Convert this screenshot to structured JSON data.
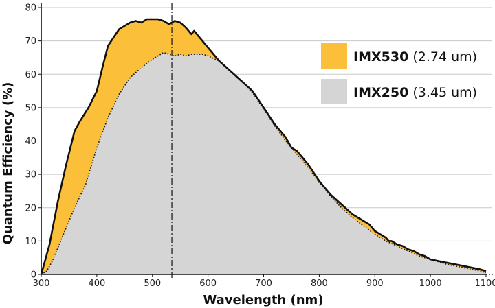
{
  "chart_data": {
    "type": "area",
    "xlabel": "Wavelength (nm)",
    "ylabel": "Quantum Efficiency (%)",
    "xlim": [
      300,
      1100
    ],
    "ylim": [
      0,
      80
    ],
    "x_ticks": [
      "300",
      "400",
      "500",
      "600",
      "700",
      "800",
      "900",
      "1000",
      "1100"
    ],
    "y_ticks": [
      "0",
      "10",
      "20",
      "30",
      "40",
      "50",
      "60",
      "70",
      "80"
    ],
    "grid": "horizontal",
    "legend_position": "top-right",
    "vertical_marker_x": 535,
    "series": [
      {
        "name": "IMX530",
        "detail": "(2.74 um)",
        "color": "#FBBF3A",
        "line_style": "solid",
        "x": [
          300,
          315,
          330,
          345,
          360,
          370,
          385,
          400,
          410,
          420,
          430,
          440,
          450,
          460,
          470,
          480,
          490,
          500,
          510,
          520,
          530,
          540,
          550,
          560,
          570,
          575,
          580,
          590,
          600,
          620,
          640,
          660,
          680,
          700,
          720,
          740,
          750,
          760,
          780,
          800,
          820,
          840,
          860,
          880,
          890,
          900,
          910,
          920,
          925,
          930,
          940,
          950,
          960,
          970,
          980,
          990,
          1000,
          1030,
          1060,
          1090,
          1100
        ],
        "values": [
          0,
          9,
          22,
          33,
          43,
          46,
          50,
          55,
          62,
          68.5,
          71,
          73.5,
          74.5,
          75.5,
          76,
          75.5,
          76.5,
          76.5,
          76.5,
          76,
          75,
          76,
          75.5,
          74,
          72,
          73,
          72,
          70,
          68,
          64,
          61,
          58,
          55,
          50,
          45,
          41,
          38,
          37,
          33,
          28,
          24,
          21,
          18,
          16,
          15,
          13,
          12,
          11,
          10,
          10,
          9,
          8.5,
          7.5,
          7,
          6,
          5.5,
          4.5,
          3.5,
          2.5,
          1.5,
          1
        ]
      },
      {
        "name": "IMX250",
        "detail": "(3.45 um)",
        "color": "#D5D5D5",
        "line_style": "dotted",
        "x": [
          300,
          310,
          320,
          340,
          360,
          380,
          400,
          420,
          440,
          460,
          480,
          500,
          510,
          520,
          530,
          540,
          550,
          560,
          570,
          580,
          590,
          600,
          620,
          640,
          660,
          680,
          700,
          720,
          740,
          760,
          780,
          800,
          820,
          840,
          860,
          880,
          900,
          920,
          940,
          960,
          980,
          1000,
          1030,
          1060,
          1090,
          1100
        ],
        "values": [
          0,
          1,
          4,
          12,
          20,
          27,
          38,
          47,
          54,
          59,
          62,
          64.5,
          65.5,
          66.5,
          66,
          65.5,
          66,
          65.5,
          66,
          66,
          66,
          65.5,
          64,
          61,
          58,
          54.5,
          49.5,
          44.5,
          40,
          36,
          32,
          27.5,
          23.5,
          20,
          17,
          14.5,
          12,
          10,
          8.5,
          7,
          5.5,
          4.5,
          3,
          2,
          1,
          0.5
        ]
      }
    ]
  }
}
